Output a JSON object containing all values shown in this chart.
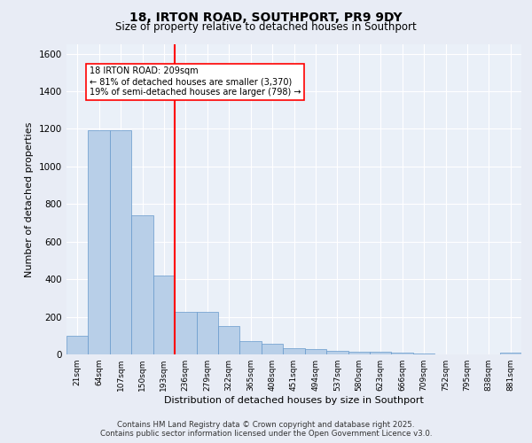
{
  "title_line1": "18, IRTON ROAD, SOUTHPORT, PR9 9DY",
  "title_line2": "Size of property relative to detached houses in Southport",
  "xlabel": "Distribution of detached houses by size in Southport",
  "ylabel": "Number of detached properties",
  "categories": [
    "21sqm",
    "64sqm",
    "107sqm",
    "150sqm",
    "193sqm",
    "236sqm",
    "279sqm",
    "322sqm",
    "365sqm",
    "408sqm",
    "451sqm",
    "494sqm",
    "537sqm",
    "580sqm",
    "623sqm",
    "666sqm",
    "709sqm",
    "752sqm",
    "795sqm",
    "838sqm",
    "881sqm"
  ],
  "values": [
    100,
    1195,
    1195,
    740,
    420,
    225,
    225,
    150,
    70,
    55,
    35,
    30,
    20,
    15,
    15,
    10,
    5,
    0,
    0,
    0,
    10
  ],
  "bar_color": "#b8cfe8",
  "bar_edge_color": "#6699cc",
  "red_line_x": 4.5,
  "annotation_title": "18 IRTON ROAD: 209sqm",
  "annotation_line1": "← 81% of detached houses are smaller (3,370)",
  "annotation_line2": "19% of semi-detached houses are larger (798) →",
  "ylim": [
    0,
    1650
  ],
  "yticks": [
    0,
    200,
    400,
    600,
    800,
    1000,
    1200,
    1400,
    1600
  ],
  "background_color": "#e8ecf5",
  "plot_background": "#eaf0f8",
  "grid_color": "#ffffff",
  "footer_line1": "Contains HM Land Registry data © Crown copyright and database right 2025.",
  "footer_line2": "Contains public sector information licensed under the Open Government Licence v3.0."
}
